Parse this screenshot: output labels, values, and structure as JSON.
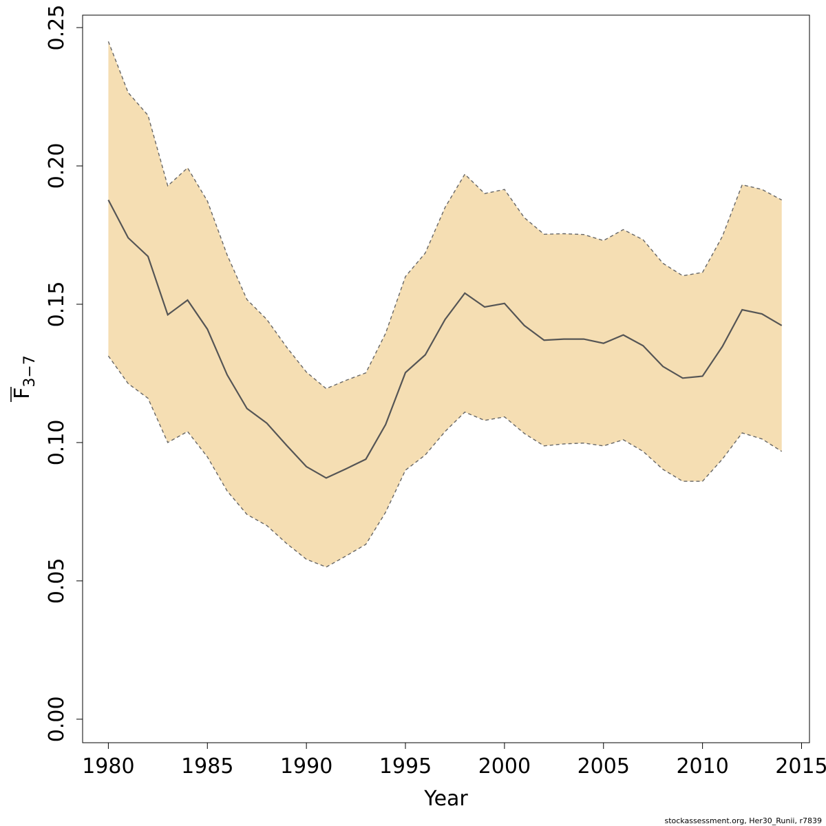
{
  "chart_data": {
    "type": "line",
    "title": "",
    "xlabel": "Year",
    "ylabel_main": "F",
    "ylabel_sub": "3−7",
    "xlim": [
      1978.7,
      2015.4
    ],
    "ylim": [
      -0.0085,
      0.2545
    ],
    "x_ticks": [
      1980,
      1985,
      1990,
      1995,
      2000,
      2005,
      2010,
      2015
    ],
    "y_ticks": [
      0.0,
      0.05,
      0.1,
      0.15,
      0.2,
      0.25
    ],
    "y_tick_labels": [
      "0.00",
      "0.05",
      "0.10",
      "0.15",
      "0.20",
      "0.25"
    ],
    "grid": false,
    "colors": {
      "band_fill": "#f5deb3",
      "estimate_line": "#555555",
      "bound_line": "#666666"
    },
    "years": [
      1980,
      1981,
      1982,
      1983,
      1984,
      1985,
      1986,
      1987,
      1988,
      1989,
      1990,
      1991,
      1992,
      1993,
      1994,
      1995,
      1996,
      1997,
      1998,
      1999,
      2000,
      2001,
      2002,
      2003,
      2004,
      2005,
      2006,
      2007,
      2008,
      2009,
      2010,
      2011,
      2012,
      2013,
      2014
    ],
    "series": [
      {
        "role": "estimate",
        "values": [
          0.1877,
          0.174,
          0.1673,
          0.1462,
          0.1515,
          0.141,
          0.1245,
          0.1123,
          0.107,
          0.099,
          0.0913,
          0.0872,
          0.0905,
          0.094,
          0.1065,
          0.1253,
          0.1317,
          0.1445,
          0.154,
          0.149,
          0.1503,
          0.1423,
          0.137,
          0.1374,
          0.1374,
          0.1359,
          0.1389,
          0.135,
          0.1275,
          0.1233,
          0.124,
          0.1347,
          0.148,
          0.1465,
          0.1423
        ]
      },
      {
        "role": "upper",
        "values": [
          0.245,
          0.2265,
          0.2183,
          0.1928,
          0.1993,
          0.1873,
          0.1678,
          0.1517,
          0.1445,
          0.1345,
          0.1255,
          0.1195,
          0.1225,
          0.1252,
          0.1395,
          0.16,
          0.1685,
          0.185,
          0.197,
          0.19,
          0.1915,
          0.1813,
          0.1753,
          0.1755,
          0.1752,
          0.173,
          0.177,
          0.1733,
          0.1648,
          0.1603,
          0.1615,
          0.1745,
          0.1932,
          0.1915,
          0.1877
        ]
      },
      {
        "role": "lower",
        "values": [
          0.1313,
          0.1213,
          0.116,
          0.1,
          0.104,
          0.0948,
          0.0825,
          0.074,
          0.07,
          0.0635,
          0.0578,
          0.055,
          0.059,
          0.0632,
          0.0748,
          0.09,
          0.0955,
          0.104,
          0.111,
          0.108,
          0.1093,
          0.1033,
          0.0988,
          0.0995,
          0.0998,
          0.0988,
          0.101,
          0.0968,
          0.0903,
          0.086,
          0.086,
          0.094,
          0.1035,
          0.1013,
          0.0968
        ]
      }
    ]
  },
  "footer": "stockassessment.org, Her30_Runii, r7839"
}
